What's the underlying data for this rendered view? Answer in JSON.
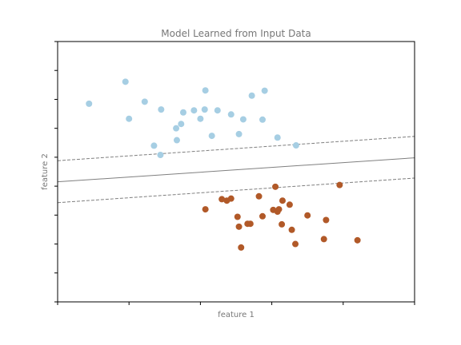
{
  "chart_data": {
    "type": "scatter",
    "title": "Model Learned from Input Data",
    "xlabel": "feature 1",
    "ylabel": "feature 2",
    "xlim": [
      0,
      5
    ],
    "ylim": [
      0,
      9
    ],
    "grid": false,
    "xticks": [
      0,
      1,
      2,
      3,
      4,
      5
    ],
    "yticks": [
      0,
      1,
      2,
      3,
      4,
      5,
      6,
      7,
      8,
      9
    ],
    "colors": {
      "class0": "#a6cee3",
      "class1": "#b15928",
      "lines": "#7f7f7f"
    },
    "lines": [
      {
        "style": "solid",
        "x": [
          0,
          5
        ],
        "y": [
          4.15,
          4.98
        ]
      },
      {
        "style": "dashed",
        "x": [
          0,
          5
        ],
        "y": [
          4.88,
          5.72
        ]
      },
      {
        "style": "dashed",
        "x": [
          0,
          5
        ],
        "y": [
          3.43,
          4.28
        ]
      }
    ],
    "series": [
      {
        "x": [
          0.44,
          0.95,
          1.0,
          1.22,
          1.35,
          1.44,
          1.45,
          1.66,
          1.67,
          1.73,
          1.76,
          1.91,
          2.0,
          2.06,
          2.07,
          2.16,
          2.24,
          2.43,
          2.54,
          2.6,
          2.72,
          2.87,
          2.9,
          3.08,
          3.34
        ],
        "y": [
          6.85,
          7.61,
          6.33,
          6.92,
          5.4,
          5.08,
          6.65,
          6.0,
          5.59,
          6.15,
          6.55,
          6.62,
          6.33,
          6.65,
          7.31,
          5.74,
          6.62,
          6.48,
          5.8,
          6.31,
          7.13,
          6.3,
          7.3,
          5.68,
          5.41
        ]
      },
      {
        "x": [
          2.07,
          2.3,
          2.37,
          2.43,
          2.52,
          2.54,
          2.57,
          2.66,
          2.7,
          2.82,
          2.87,
          3.02,
          3.05,
          3.08,
          3.1,
          3.14,
          3.15,
          3.25,
          3.28,
          3.33,
          3.5,
          3.73,
          3.76,
          3.95,
          4.2
        ],
        "y": [
          3.2,
          3.55,
          3.5,
          3.57,
          2.94,
          2.6,
          1.88,
          2.7,
          2.7,
          3.65,
          2.96,
          3.18,
          3.98,
          3.12,
          3.2,
          2.68,
          3.5,
          3.36,
          2.49,
          2.0,
          2.99,
          2.17,
          2.83,
          4.04,
          2.13
        ]
      }
    ]
  }
}
